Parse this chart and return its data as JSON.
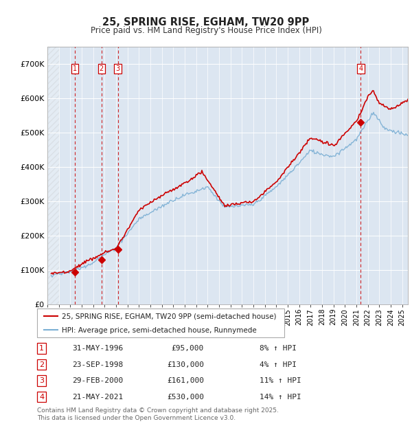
{
  "title": "25, SPRING RISE, EGHAM, TW20 9PP",
  "subtitle": "Price paid vs. HM Land Registry's House Price Index (HPI)",
  "ylabel_ticks": [
    "£0",
    "£100K",
    "£200K",
    "£300K",
    "£400K",
    "£500K",
    "£600K",
    "£700K"
  ],
  "ytick_values": [
    0,
    100000,
    200000,
    300000,
    400000,
    500000,
    600000,
    700000
  ],
  "ylim": [
    0,
    750000
  ],
  "xlim_start": 1994.0,
  "xlim_end": 2025.5,
  "background_color": "#dce6f1",
  "transactions": [
    {
      "label": "1",
      "date": 1996.41,
      "price": 95000
    },
    {
      "label": "2",
      "date": 1998.73,
      "price": 130000
    },
    {
      "label": "3",
      "date": 2000.16,
      "price": 161000
    },
    {
      "label": "4",
      "date": 2021.38,
      "price": 530000
    }
  ],
  "transaction_info": [
    {
      "num": 1,
      "date_str": "31-MAY-1996",
      "price_str": "£95,000",
      "pct": "8%",
      "dir": "↑"
    },
    {
      "num": 2,
      "date_str": "23-SEP-1998",
      "price_str": "£130,000",
      "pct": "4%",
      "dir": "↑"
    },
    {
      "num": 3,
      "date_str": "29-FEB-2000",
      "price_str": "£161,000",
      "pct": "11%",
      "dir": "↑"
    },
    {
      "num": 4,
      "date_str": "21-MAY-2021",
      "price_str": "£530,000",
      "pct": "14%",
      "dir": "↑"
    }
  ],
  "legend_line1": "25, SPRING RISE, EGHAM, TW20 9PP (semi-detached house)",
  "legend_line2": "HPI: Average price, semi-detached house, Runnymede",
  "footer": "Contains HM Land Registry data © Crown copyright and database right 2025.\nThis data is licensed under the Open Government Licence v3.0.",
  "line_color_red": "#cc0000",
  "line_color_blue": "#7bafd4",
  "vline_color": "#cc0000",
  "vline_color_grey": "#999999"
}
